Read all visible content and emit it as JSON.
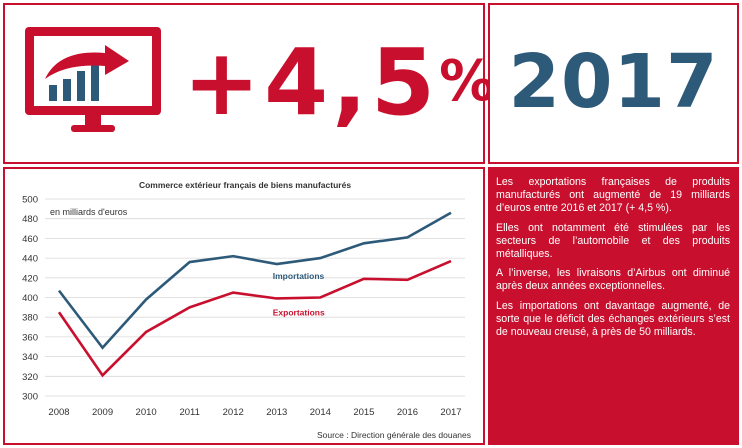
{
  "headline": {
    "value_sign": "+",
    "value_number": "4,5",
    "value_unit": "%",
    "year": "2017",
    "icon": "monitor-chart-arrow-icon"
  },
  "colors": {
    "accent_red": "#c8102e",
    "blue": "#2e5a7a",
    "white": "#ffffff"
  },
  "text_panel": {
    "paragraphs": [
      "Les exportations françaises de produits manufacturés ont augmenté de 19 milliards d’euros entre 2016 et 2017 (+ 4,5 %).",
      "Elles ont notamment été stimulées par les secteurs de l’automobile et des produits métalliques.",
      "A l’inverse, les livraisons d’Airbus ont diminué après deux années exceptionnelles.",
      "Les importations ont davantage augmenté, de sorte que le déficit des échanges extérieurs s’est de nouveau creusé, à près de 50 milliards."
    ]
  },
  "chart_data": {
    "type": "line",
    "title": "Commerce extérieur français de biens manufacturés",
    "xlabel": "",
    "ylabel": "en milliards d'euros",
    "x": [
      "2008",
      "2009",
      "2010",
      "2011",
      "2012",
      "2013",
      "2014",
      "2015",
      "2016",
      "2017"
    ],
    "ylim": [
      300,
      500
    ],
    "yticks": [
      300,
      320,
      340,
      360,
      380,
      400,
      420,
      440,
      460,
      480,
      500
    ],
    "grid": true,
    "series": [
      {
        "name": "Importations",
        "color": "#2e5a7a",
        "values": [
          407,
          349,
          398,
          436,
          442,
          434,
          440,
          455,
          461,
          486
        ]
      },
      {
        "name": "Exportations",
        "color": "#c8102e",
        "values": [
          385,
          321,
          365,
          390,
          405,
          399,
          400,
          419,
          418,
          437
        ]
      }
    ],
    "source": "Source : Direction générale des douanes"
  }
}
